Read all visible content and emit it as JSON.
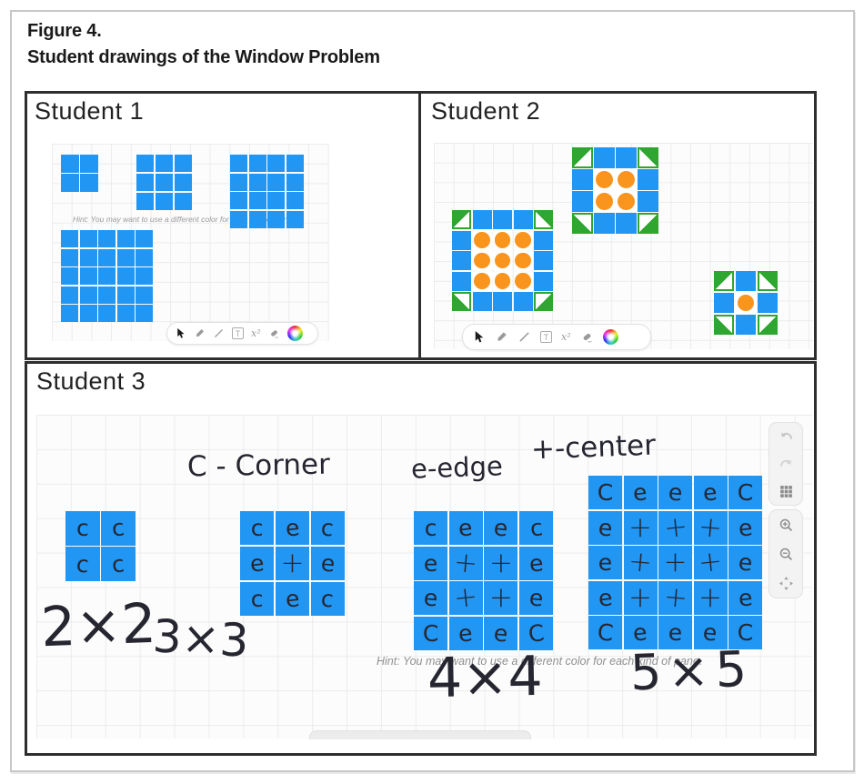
{
  "figure": {
    "label": "Figure 4.",
    "title": "Student drawings of the Window Problem"
  },
  "hint": "Hint: You may want to use a different color for each kind of pane.",
  "colors": {
    "pane_blue": "#2196f3",
    "corner_green": "#2fa62f",
    "center_orange": "#f9941d",
    "ink": "#262631"
  },
  "drawing_toolbar": {
    "tools": [
      {
        "name": "select-arrow"
      },
      {
        "name": "pen"
      },
      {
        "name": "line"
      },
      {
        "name": "text-box",
        "label": "T"
      },
      {
        "name": "exponent",
        "label": "x²"
      },
      {
        "name": "eraser"
      },
      {
        "name": "color-wheel"
      }
    ]
  },
  "side_toolbar": {
    "buttons": [
      "undo",
      "redo",
      "grid",
      "zoom-in",
      "zoom-out",
      "move"
    ]
  },
  "panels": [
    {
      "title": "Student 1",
      "windows": [
        {
          "size": 2,
          "style": "all-blue"
        },
        {
          "size": 3,
          "style": "all-blue"
        },
        {
          "size": 4,
          "style": "all-blue"
        },
        {
          "size": 5,
          "style": "all-blue"
        }
      ]
    },
    {
      "title": "Student 2",
      "windows": [
        {
          "size": 5,
          "style": "corner-edge-center"
        },
        {
          "size": 4,
          "style": "corner-edge-center"
        },
        {
          "size": 3,
          "style": "corner-edge-center"
        }
      ]
    },
    {
      "title": "Student 3",
      "legend": {
        "corner": "C - Corner",
        "edge": "e-edge",
        "center": "+-center"
      },
      "windows": [
        {
          "size": 2,
          "style": "blue-letters",
          "label": "2×2",
          "cells": [
            [
              "c",
              "c"
            ],
            [
              "c",
              "c"
            ]
          ]
        },
        {
          "size": 3,
          "style": "blue-letters",
          "label": "3×3",
          "cells": [
            [
              "c",
              "e",
              "c"
            ],
            [
              "e",
              "+",
              "e"
            ],
            [
              "c",
              "e",
              "c"
            ]
          ]
        },
        {
          "size": 4,
          "style": "blue-letters",
          "label": "4×4",
          "cells": [
            [
              "c",
              "e",
              "e",
              "c"
            ],
            [
              "e",
              "+",
              "+",
              "e"
            ],
            [
              "e",
              "+",
              "+",
              "e"
            ],
            [
              "C",
              "e",
              "e",
              "C"
            ]
          ]
        },
        {
          "size": 5,
          "style": "blue-letters",
          "label": "5×5",
          "cells": [
            [
              "C",
              "e",
              "e",
              "e",
              "C"
            ],
            [
              "e",
              "+",
              "+",
              "+",
              "e"
            ],
            [
              "e",
              "+",
              "+",
              "+",
              "e"
            ],
            [
              "e",
              "+",
              "+",
              "+",
              "e"
            ],
            [
              "C",
              "e",
              "e",
              "e",
              "C"
            ]
          ]
        }
      ]
    }
  ]
}
